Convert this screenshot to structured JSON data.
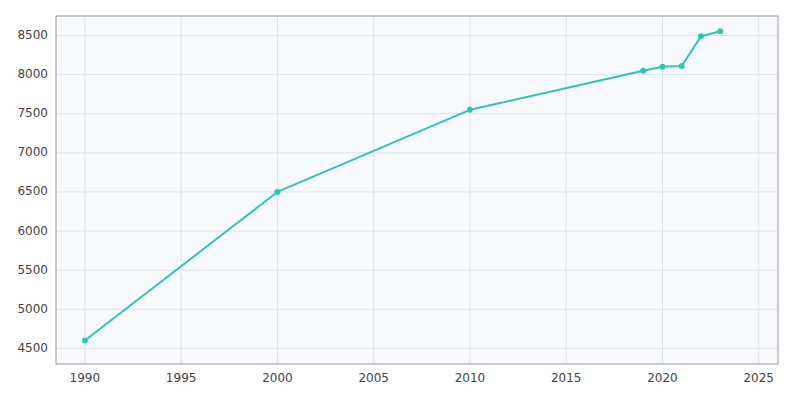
{
  "chart_data": {
    "type": "line",
    "x": [
      1990,
      2000,
      2010,
      2019,
      2020,
      2021,
      2022,
      2023
    ],
    "values": [
      4600,
      6500,
      7550,
      8050,
      8100,
      8110,
      8490,
      8555
    ],
    "color": "#2EC4B6",
    "marker": "circle",
    "xlim": [
      1988.5,
      2026
    ],
    "ylim": [
      4300,
      8750
    ],
    "xticks": [
      1990,
      1995,
      2000,
      2005,
      2010,
      2015,
      2020,
      2025
    ],
    "yticks": [
      4500,
      5000,
      5500,
      6000,
      6500,
      7000,
      7500,
      8000,
      8500
    ],
    "grid": true
  }
}
